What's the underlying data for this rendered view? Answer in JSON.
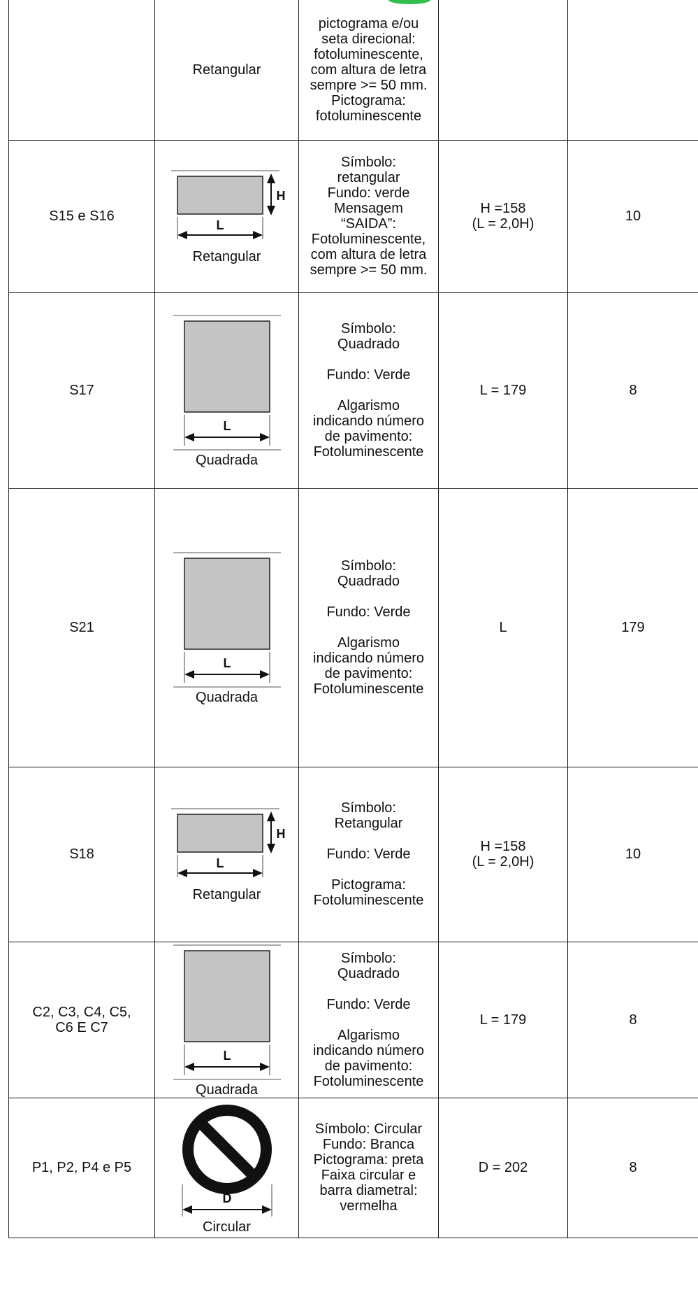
{
  "rows": [
    {
      "code": "",
      "shape": "Retangular",
      "figure": "none",
      "description": [
        "pictograma e/ou",
        "seta direcional:",
        "fotoluminescente,",
        "com altura de letra",
        "sempre >= 50 mm.",
        "Pictograma:",
        "fotoluminescente"
      ],
      "dimension": "",
      "distance": ""
    },
    {
      "code": "S15 e S16",
      "shape": "Retangular",
      "figure": "rect",
      "description": [
        "Símbolo:",
        "retangular",
        "Fundo: verde",
        "Mensagem",
        "“SAIDA”:",
        "Fotoluminescente,",
        "com altura de letra",
        "sempre >= 50 mm."
      ],
      "dimension": "H =158\n(L = 2,0H)",
      "distance": "10"
    },
    {
      "code": "S17",
      "shape": "Quadrada",
      "figure": "square",
      "description": [
        "Símbolo:",
        "Quadrado",
        "",
        "Fundo: Verde",
        "",
        "Algarismo",
        "indicando número",
        "de pavimento:",
        "Fotoluminescente"
      ],
      "dimension": "L = 179",
      "distance": "8"
    },
    {
      "code": "S21",
      "shape": "Quadrada",
      "figure": "square",
      "description": [
        "Símbolo:",
        "Quadrado",
        "",
        "Fundo: Verde",
        "",
        "Algarismo",
        "indicando número",
        "de pavimento:",
        "Fotoluminescente"
      ],
      "dimension": "L",
      "distance": "179"
    },
    {
      "code": "S18",
      "shape": "Retangular",
      "figure": "rect",
      "description": [
        "Símbolo:",
        "Retangular",
        "",
        "Fundo: Verde",
        "",
        "Pictograma:",
        "Fotoluminescente"
      ],
      "dimension": "H =158\n(L = 2,0H)",
      "distance": "10"
    },
    {
      "code": "C2, C3, C4, C5,\nC6 E C7",
      "shape": "Quadrada",
      "figure": "square",
      "description": [
        "Símbolo:",
        "Quadrado",
        "",
        "Fundo: Verde",
        "",
        "Algarismo",
        "indicando número",
        "de pavimento:",
        "Fotoluminescente"
      ],
      "dimension": "L = 179",
      "distance": "8"
    },
    {
      "code": "P1, P2, P4 e P5",
      "shape": "Circular",
      "figure": "circle",
      "description": [
        "Símbolo: Circular",
        "Fundo: Branca",
        "Pictograma: preta",
        "Faixa circular e",
        "barra diametral:",
        "vermelha"
      ],
      "dimension": "D = 202",
      "distance": "8"
    }
  ],
  "figure_labels": {
    "width": "L",
    "height": "H",
    "diameter": "D"
  },
  "colors": {
    "sign_fill": "#c4c4c4",
    "sign_stroke": "#222222",
    "prohibition": "#111111",
    "accent": "#2fbf4a"
  }
}
